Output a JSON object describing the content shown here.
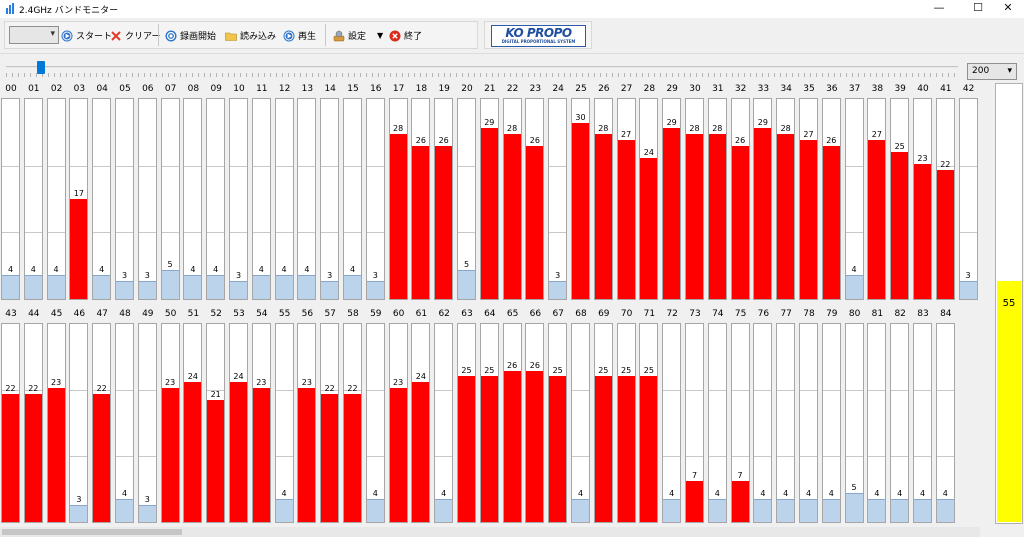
{
  "window": {
    "title": "2.4GHz バンドモニター",
    "minimize": "—",
    "maximize": "☐",
    "close": "✕"
  },
  "toolbar": {
    "combo_value": "",
    "start_label": "スタート",
    "clear_label": "クリアー",
    "record_label": "録画開始",
    "load_label": "読み込み",
    "play_label": "再生",
    "settings_label": "設定",
    "exit_label": "終了"
  },
  "logo": {
    "main": "KO PROPO",
    "sub": "DIGITAL PROPORTIONAL SYSTEM"
  },
  "range_select": {
    "value": "200"
  },
  "meter": {
    "value": 55,
    "color": "#ffff00"
  },
  "colors": {
    "active": "#ff0000",
    "idle": "#bcd3ec"
  },
  "rows": [
    {
      "channels": [
        {
          "id": "00",
          "value": 4,
          "state": "idle"
        },
        {
          "id": "01",
          "value": 4,
          "state": "idle"
        },
        {
          "id": "02",
          "value": 4,
          "state": "idle"
        },
        {
          "id": "03",
          "value": 17,
          "state": "active"
        },
        {
          "id": "04",
          "value": 4,
          "state": "idle"
        },
        {
          "id": "05",
          "value": 3,
          "state": "idle"
        },
        {
          "id": "06",
          "value": 3,
          "state": "idle"
        },
        {
          "id": "07",
          "value": 5,
          "state": "idle"
        },
        {
          "id": "08",
          "value": 4,
          "state": "idle"
        },
        {
          "id": "09",
          "value": 4,
          "state": "idle"
        },
        {
          "id": "10",
          "value": 3,
          "state": "idle"
        },
        {
          "id": "11",
          "value": 4,
          "state": "idle"
        },
        {
          "id": "12",
          "value": 4,
          "state": "idle"
        },
        {
          "id": "13",
          "value": 4,
          "state": "idle"
        },
        {
          "id": "14",
          "value": 3,
          "state": "idle"
        },
        {
          "id": "15",
          "value": 4,
          "state": "idle"
        },
        {
          "id": "16",
          "value": 3,
          "state": "idle"
        },
        {
          "id": "17",
          "value": 28,
          "state": "active"
        },
        {
          "id": "18",
          "value": 26,
          "state": "active"
        },
        {
          "id": "19",
          "value": 26,
          "state": "active"
        },
        {
          "id": "20",
          "value": 5,
          "state": "idle"
        },
        {
          "id": "21",
          "value": 29,
          "state": "active"
        },
        {
          "id": "22",
          "value": 28,
          "state": "active"
        },
        {
          "id": "23",
          "value": 26,
          "state": "active"
        },
        {
          "id": "24",
          "value": 3,
          "state": "idle"
        },
        {
          "id": "25",
          "value": 30,
          "state": "active"
        },
        {
          "id": "26",
          "value": 28,
          "state": "active"
        },
        {
          "id": "27",
          "value": 27,
          "state": "active"
        },
        {
          "id": "28",
          "value": 24,
          "state": "active"
        },
        {
          "id": "29",
          "value": 29,
          "state": "active"
        },
        {
          "id": "30",
          "value": 28,
          "state": "active"
        },
        {
          "id": "31",
          "value": 28,
          "state": "active"
        },
        {
          "id": "32",
          "value": 26,
          "state": "active"
        },
        {
          "id": "33",
          "value": 29,
          "state": "active"
        },
        {
          "id": "34",
          "value": 28,
          "state": "active"
        },
        {
          "id": "35",
          "value": 27,
          "state": "active"
        },
        {
          "id": "36",
          "value": 26,
          "state": "active"
        },
        {
          "id": "37",
          "value": 4,
          "state": "idle"
        },
        {
          "id": "38",
          "value": 27,
          "state": "active"
        },
        {
          "id": "39",
          "value": 25,
          "state": "active"
        },
        {
          "id": "40",
          "value": 23,
          "state": "active"
        },
        {
          "id": "41",
          "value": 22,
          "state": "active"
        },
        {
          "id": "42",
          "value": 3,
          "state": "idle"
        }
      ]
    },
    {
      "channels": [
        {
          "id": "43",
          "value": 22,
          "state": "active"
        },
        {
          "id": "44",
          "value": 22,
          "state": "active"
        },
        {
          "id": "45",
          "value": 23,
          "state": "active"
        },
        {
          "id": "46",
          "value": 3,
          "state": "idle"
        },
        {
          "id": "47",
          "value": 22,
          "state": "active"
        },
        {
          "id": "48",
          "value": 4,
          "state": "idle"
        },
        {
          "id": "49",
          "value": 3,
          "state": "idle"
        },
        {
          "id": "50",
          "value": 23,
          "state": "active"
        },
        {
          "id": "51",
          "value": 24,
          "state": "active"
        },
        {
          "id": "52",
          "value": 21,
          "state": "active"
        },
        {
          "id": "53",
          "value": 24,
          "state": "active"
        },
        {
          "id": "54",
          "value": 23,
          "state": "active"
        },
        {
          "id": "55",
          "value": 4,
          "state": "idle"
        },
        {
          "id": "56",
          "value": 23,
          "state": "active"
        },
        {
          "id": "57",
          "value": 22,
          "state": "active"
        },
        {
          "id": "58",
          "value": 22,
          "state": "active"
        },
        {
          "id": "59",
          "value": 4,
          "state": "idle"
        },
        {
          "id": "60",
          "value": 23,
          "state": "active"
        },
        {
          "id": "61",
          "value": 24,
          "state": "active"
        },
        {
          "id": "62",
          "value": 4,
          "state": "idle"
        },
        {
          "id": "63",
          "value": 25,
          "state": "active"
        },
        {
          "id": "64",
          "value": 25,
          "state": "active"
        },
        {
          "id": "65",
          "value": 26,
          "state": "active"
        },
        {
          "id": "66",
          "value": 26,
          "state": "active"
        },
        {
          "id": "67",
          "value": 25,
          "state": "active"
        },
        {
          "id": "68",
          "value": 4,
          "state": "idle"
        },
        {
          "id": "69",
          "value": 25,
          "state": "active"
        },
        {
          "id": "70",
          "value": 25,
          "state": "active"
        },
        {
          "id": "71",
          "value": 25,
          "state": "active"
        },
        {
          "id": "72",
          "value": 4,
          "state": "idle"
        },
        {
          "id": "73",
          "value": 7,
          "state": "active"
        },
        {
          "id": "74",
          "value": 4,
          "state": "idle"
        },
        {
          "id": "75",
          "value": 7,
          "state": "active"
        },
        {
          "id": "76",
          "value": 4,
          "state": "idle"
        },
        {
          "id": "77",
          "value": 4,
          "state": "idle"
        },
        {
          "id": "78",
          "value": 4,
          "state": "idle"
        },
        {
          "id": "79",
          "value": 4,
          "state": "idle"
        },
        {
          "id": "80",
          "value": 5,
          "state": "idle"
        },
        {
          "id": "81",
          "value": 4,
          "state": "idle"
        },
        {
          "id": "82",
          "value": 4,
          "state": "idle"
        },
        {
          "id": "83",
          "value": 4,
          "state": "idle"
        },
        {
          "id": "84",
          "value": 4,
          "state": "idle"
        }
      ]
    }
  ]
}
